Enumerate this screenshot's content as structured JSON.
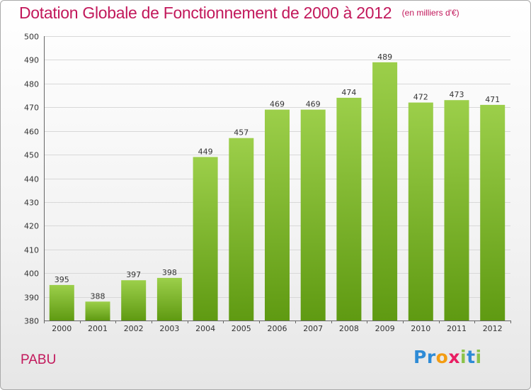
{
  "header": {
    "title": "Dotation Globale de Fonctionnement de 2000 à 2012",
    "subtitle": "(en milliers d'€)"
  },
  "footer": {
    "commune": "PABU",
    "logo_text": "Proxiti",
    "logo_colors": [
      "#2e8bd6",
      "#2e8bd6",
      "#f39c12",
      "#e91e63",
      "#8bc34a",
      "#2e8bd6",
      "#8bc34a"
    ]
  },
  "colors": {
    "title": "#c2185b",
    "bar_top": "#9ccf4a",
    "bar_bottom": "#5f9a12",
    "grid": "#d8d8d8",
    "axis": "#666666"
  },
  "chart_data": {
    "type": "bar",
    "title": "Dotation Globale de Fonctionnement de 2000 à 2012",
    "subtitle": "(en milliers d'€)",
    "xlabel": "",
    "ylabel": "",
    "categories": [
      "2000",
      "2001",
      "2002",
      "2003",
      "2004",
      "2005",
      "2006",
      "2007",
      "2008",
      "2009",
      "2010",
      "2011",
      "2012"
    ],
    "values": [
      395,
      388,
      397,
      398,
      449,
      457,
      469,
      469,
      474,
      489,
      472,
      473,
      471
    ],
    "ylim": [
      380,
      500
    ],
    "yticks": [
      380,
      390,
      400,
      410,
      420,
      430,
      440,
      450,
      460,
      470,
      480,
      490,
      500
    ],
    "grid": true,
    "legend": "none"
  }
}
